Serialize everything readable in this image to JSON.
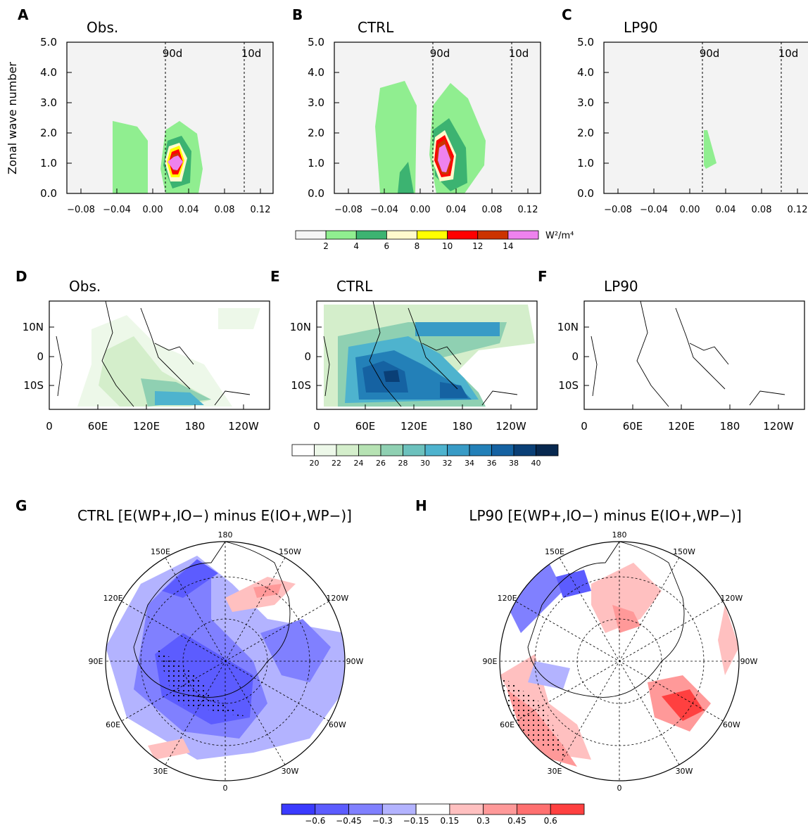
{
  "panels_top": [
    {
      "letter": "A",
      "title": "Obs."
    },
    {
      "letter": "B",
      "title": "CTRL"
    },
    {
      "letter": "C",
      "title": "LP90"
    }
  ],
  "top_axes": {
    "y_label": "Zonal wave number",
    "y_ticks": [
      "5.0",
      "4.0",
      "3.0",
      "2.0",
      "1.0",
      "0.0"
    ],
    "x_ticks": [
      "−0.08",
      "−0.04",
      "0.00",
      "0.04",
      "0.08",
      "0.12"
    ],
    "lines": [
      "90d",
      "10d"
    ]
  },
  "colorbar_1": {
    "labels": [
      "2",
      "4",
      "6",
      "8",
      "10",
      "12",
      "14"
    ],
    "unit": "W²/m⁴"
  },
  "panels_mid": [
    {
      "letter": "D",
      "title": "Obs."
    },
    {
      "letter": "E",
      "title": "CTRL"
    },
    {
      "letter": "F",
      "title": "LP90"
    }
  ],
  "mid_axes": {
    "y_ticks": [
      "10N",
      "0",
      "10S"
    ],
    "x_ticks": [
      "0",
      "60E",
      "120E",
      "180",
      "120W"
    ]
  },
  "colorbar_2": {
    "labels": [
      "20",
      "22",
      "24",
      "26",
      "28",
      "30",
      "32",
      "34",
      "36",
      "38",
      "40"
    ]
  },
  "panels_polar": [
    {
      "letter": "G",
      "title": "CTRL [E(WP+,IO−) minus E(IO+,WP−)]"
    },
    {
      "letter": "H",
      "title": "LP90 [E(WP+,IO−) minus E(IO+,WP−)]"
    }
  ],
  "polar_labels": [
    "180",
    "150W",
    "120W",
    "90W",
    "60W",
    "30W",
    "0",
    "30E",
    "60E",
    "90E",
    "120E",
    "150E"
  ],
  "colorbar_3": {
    "labels": [
      "−0.6",
      "−0.45",
      "−0.3",
      "−0.15",
      "0.15",
      "0.3",
      "0.45",
      "0.6"
    ]
  }
}
